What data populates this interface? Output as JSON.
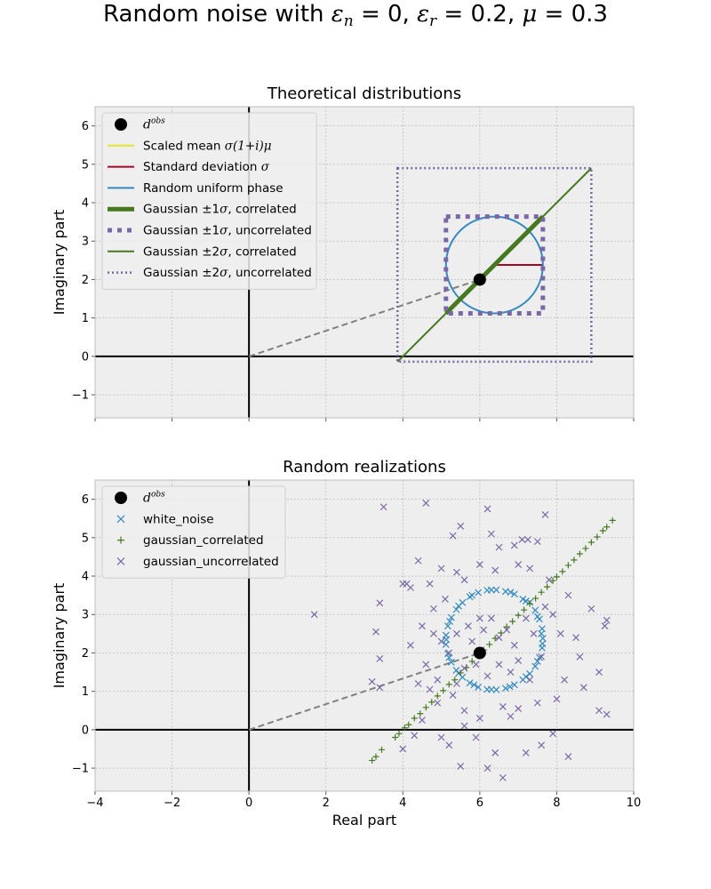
{
  "title": "Random noise with ε_n = 0, ε_r = 0.2, μ = 0.3",
  "chart_data": [
    {
      "type": "line",
      "title": "Theoretical distributions",
      "xlabel": "",
      "ylabel": "Imaginary part",
      "xlim": [
        -4,
        10
      ],
      "ylim": [
        -1.6,
        6.5
      ],
      "xticks": [
        -4,
        -2,
        0,
        2,
        4,
        6,
        8,
        10
      ],
      "yticks": [
        -1,
        0,
        1,
        2,
        3,
        4,
        5,
        6
      ],
      "grid": true,
      "legend_position": "upper-left",
      "observation": {
        "x": 6,
        "y": 2
      },
      "reference_line": {
        "from": [
          0,
          0
        ],
        "to": [
          6,
          2
        ]
      },
      "series": [
        {
          "name": "d^obs",
          "type": "point",
          "color": "#000000",
          "points": [
            [
              6,
              2
            ]
          ]
        },
        {
          "name": "Scaled mean σ(1+i)μ",
          "type": "line",
          "color": "#e5e52b",
          "points": [
            [
              6,
              2
            ],
            [
              6.38,
              2.38
            ]
          ]
        },
        {
          "name": "Standard deviation σ",
          "type": "line",
          "color": "#a60628",
          "points": [
            [
              6.38,
              2.38
            ],
            [
              7.64,
              2.38
            ]
          ]
        },
        {
          "name": "Random uniform phase",
          "type": "circle",
          "color": "#348abd",
          "center": [
            6.38,
            2.38
          ],
          "radius": 1.26
        },
        {
          "name": "Gaussian ±1σ, correlated",
          "type": "line",
          "color": "#467821",
          "points": [
            [
              5.12,
              1.12
            ],
            [
              7.64,
              3.64
            ]
          ]
        },
        {
          "name": "Gaussian ±1σ, uncorrelated",
          "type": "rectangle",
          "color": "#7a68a6",
          "x": [
            5.12,
            7.64
          ],
          "y": [
            1.12,
            3.64
          ]
        },
        {
          "name": "Gaussian ±2σ, correlated",
          "type": "line",
          "color": "#467821",
          "points": [
            [
              3.86,
              -0.14
            ],
            [
              8.9,
              4.9
            ]
          ]
        },
        {
          "name": "Gaussian ±2σ, uncorrelated",
          "type": "rectangle",
          "color": "#7a68a6",
          "x": [
            3.86,
            8.9
          ],
          "y": [
            -0.14,
            4.9
          ]
        }
      ]
    },
    {
      "type": "scatter",
      "title": "Random realizations",
      "xlabel": "Real part",
      "ylabel": "Imaginary part",
      "xlim": [
        -4,
        10
      ],
      "ylim": [
        -1.6,
        6.5
      ],
      "xticks": [
        -4,
        -2,
        0,
        2,
        4,
        6,
        8,
        10
      ],
      "yticks": [
        -1,
        0,
        1,
        2,
        3,
        4,
        5,
        6
      ],
      "grid": true,
      "legend_position": "upper-left",
      "observation": {
        "x": 6,
        "y": 2
      },
      "reference_line": {
        "from": [
          0,
          0
        ],
        "to": [
          6,
          2
        ]
      },
      "series": [
        {
          "name": "d^obs",
          "marker": "circle",
          "color": "#000000",
          "points": [
            [
              6,
              2
            ]
          ]
        },
        {
          "name": "white_noise",
          "marker": "x",
          "color": "#348abd",
          "points": [
            [
              7.64,
              2.38
            ],
            [
              7.62,
              2.63
            ],
            [
              7.55,
              2.88
            ],
            [
              7.44,
              3.11
            ],
            [
              7.3,
              3.32
            ],
            [
              7.12,
              3.4
            ],
            [
              6.9,
              3.53
            ],
            [
              6.67,
              3.6
            ],
            [
              6.43,
              3.64
            ],
            [
              6.19,
              3.63
            ],
            [
              5.96,
              3.57
            ],
            [
              5.74,
              3.46
            ],
            [
              5.55,
              3.31
            ],
            [
              5.39,
              3.13
            ],
            [
              5.26,
              2.92
            ],
            [
              5.17,
              2.7
            ],
            [
              5.12,
              2.46
            ],
            [
              5.12,
              2.22
            ],
            [
              5.17,
              1.98
            ],
            [
              5.26,
              1.76
            ],
            [
              5.39,
              1.55
            ],
            [
              5.55,
              1.37
            ],
            [
              5.74,
              1.22
            ],
            [
              5.96,
              1.11
            ],
            [
              6.19,
              1.05
            ],
            [
              6.43,
              1.04
            ],
            [
              6.67,
              1.08
            ],
            [
              6.9,
              1.17
            ],
            [
              7.12,
              1.3
            ],
            [
              7.3,
              1.46
            ],
            [
              7.44,
              1.65
            ],
            [
              7.55,
              1.88
            ],
            [
              7.62,
              2.13
            ],
            [
              7.6,
              2.5
            ],
            [
              7.5,
              2.95
            ],
            [
              7.2,
              3.35
            ],
            [
              6.8,
              3.58
            ],
            [
              6.3,
              3.64
            ],
            [
              5.8,
              3.5
            ],
            [
              5.45,
              3.22
            ],
            [
              5.22,
              2.82
            ],
            [
              5.13,
              2.35
            ],
            [
              5.2,
              1.88
            ],
            [
              5.45,
              1.47
            ],
            [
              5.85,
              1.17
            ],
            [
              6.3,
              1.05
            ],
            [
              6.78,
              1.12
            ],
            [
              7.2,
              1.38
            ],
            [
              7.5,
              1.78
            ],
            [
              7.63,
              2.24
            ]
          ]
        },
        {
          "name": "gaussian_correlated",
          "marker": "plus",
          "color": "#467821",
          "points": [
            [
              3.2,
              -0.8
            ],
            [
              3.3,
              -0.7
            ],
            [
              3.45,
              -0.52
            ],
            [
              3.8,
              -0.2
            ],
            [
              3.9,
              -0.1
            ],
            [
              4.05,
              0.05
            ],
            [
              4.15,
              0.13
            ],
            [
              4.3,
              0.3
            ],
            [
              4.45,
              0.42
            ],
            [
              4.6,
              0.58
            ],
            [
              4.75,
              0.72
            ],
            [
              4.9,
              0.88
            ],
            [
              5.05,
              1.02
            ],
            [
              5.2,
              1.18
            ],
            [
              5.35,
              1.3
            ],
            [
              5.5,
              1.48
            ],
            [
              5.65,
              1.62
            ],
            [
              5.8,
              1.78
            ],
            [
              5.95,
              1.92
            ],
            [
              6.1,
              2.08
            ],
            [
              6.25,
              2.22
            ],
            [
              6.4,
              2.38
            ],
            [
              6.55,
              2.52
            ],
            [
              6.7,
              2.68
            ],
            [
              6.85,
              2.82
            ],
            [
              7.0,
              2.98
            ],
            [
              7.15,
              3.12
            ],
            [
              7.3,
              3.28
            ],
            [
              7.45,
              3.42
            ],
            [
              7.6,
              3.58
            ],
            [
              7.75,
              3.72
            ],
            [
              7.9,
              3.88
            ],
            [
              8.0,
              3.98
            ],
            [
              8.15,
              4.12
            ],
            [
              8.3,
              4.28
            ],
            [
              8.45,
              4.42
            ],
            [
              8.6,
              4.58
            ],
            [
              8.75,
              4.72
            ],
            [
              8.9,
              4.88
            ],
            [
              9.05,
              5.02
            ],
            [
              9.2,
              5.18
            ],
            [
              9.3,
              5.28
            ],
            [
              9.45,
              5.45
            ]
          ]
        },
        {
          "name": "gaussian_uncorrelated",
          "marker": "x",
          "color": "#7a68a6",
          "points": [
            [
              1.7,
              3.0
            ],
            [
              3.5,
              5.8
            ],
            [
              4.6,
              5.9
            ],
            [
              3.4,
              3.3
            ],
            [
              3.3,
              2.55
            ],
            [
              3.4,
              1.85
            ],
            [
              3.2,
              1.25
            ],
            [
              3.4,
              1.1
            ],
            [
              4.0,
              3.8
            ],
            [
              4.2,
              3.7
            ],
            [
              4.4,
              4.4
            ],
            [
              5.3,
              5.05
            ],
            [
              5.5,
              5.3
            ],
            [
              6.2,
              5.75
            ],
            [
              6.3,
              5.1
            ],
            [
              6.5,
              4.75
            ],
            [
              6.9,
              4.8
            ],
            [
              7.1,
              4.95
            ],
            [
              7.25,
              4.95
            ],
            [
              7.5,
              4.9
            ],
            [
              7.7,
              5.6
            ],
            [
              8.9,
              3.15
            ],
            [
              9.3,
              2.85
            ],
            [
              9.25,
              2.7
            ],
            [
              9.1,
              1.5
            ],
            [
              9.1,
              0.5
            ],
            [
              9.3,
              0.4
            ],
            [
              8.6,
              1.9
            ],
            [
              8.7,
              1.1
            ],
            [
              8.3,
              -0.7
            ],
            [
              7.9,
              -0.1
            ],
            [
              7.6,
              -0.4
            ],
            [
              7.2,
              -0.6
            ],
            [
              6.6,
              -1.25
            ],
            [
              6.4,
              -0.6
            ],
            [
              6.2,
              -1.0
            ],
            [
              5.9,
              -0.2
            ],
            [
              5.5,
              -0.95
            ],
            [
              5.2,
              -0.4
            ],
            [
              5.0,
              -0.2
            ],
            [
              4.0,
              -0.5
            ],
            [
              4.3,
              -0.15
            ],
            [
              4.5,
              0.25
            ],
            [
              4.2,
              2.2
            ],
            [
              4.1,
              3.8
            ],
            [
              4.7,
              3.8
            ],
            [
              4.8,
              3.15
            ],
            [
              5.0,
              4.2
            ],
            [
              5.4,
              4.1
            ],
            [
              5.6,
              3.9
            ],
            [
              6.0,
              4.3
            ],
            [
              6.4,
              4.15
            ],
            [
              7.0,
              4.3
            ],
            [
              7.3,
              4.2
            ],
            [
              7.8,
              3.9
            ],
            [
              7.9,
              3.0
            ],
            [
              8.1,
              2.5
            ],
            [
              8.3,
              3.5
            ],
            [
              8.5,
              2.4
            ],
            [
              8.2,
              1.3
            ],
            [
              7.5,
              0.7
            ],
            [
              7.0,
              0.55
            ],
            [
              6.6,
              0.6
            ],
            [
              6.0,
              0.3
            ],
            [
              5.6,
              0.5
            ],
            [
              5.3,
              0.9
            ],
            [
              4.9,
              1.3
            ],
            [
              4.6,
              1.7
            ],
            [
              4.5,
              2.7
            ],
            [
              4.8,
              2.5
            ],
            [
              5.0,
              2.3
            ],
            [
              5.2,
              2.0
            ],
            [
              5.4,
              2.5
            ],
            [
              5.7,
              2.7
            ],
            [
              5.8,
              2.3
            ],
            [
              6.1,
              2.6
            ],
            [
              6.3,
              2.9
            ],
            [
              6.5,
              2.4
            ],
            [
              6.7,
              2.6
            ],
            [
              6.9,
              2.2
            ],
            [
              7.0,
              1.8
            ],
            [
              6.8,
              1.5
            ],
            [
              6.5,
              1.7
            ],
            [
              6.2,
              1.4
            ],
            [
              5.9,
              1.7
            ],
            [
              5.6,
              1.6
            ],
            [
              5.4,
              1.2
            ],
            [
              7.2,
              2.9
            ],
            [
              7.4,
              2.5
            ],
            [
              7.6,
              1.9
            ],
            [
              7.3,
              1.3
            ],
            [
              6.0,
              2.9
            ],
            [
              5.1,
              3.4
            ],
            [
              4.7,
              1.05
            ],
            [
              4.4,
              1.2
            ],
            [
              4.9,
              0.7
            ],
            [
              5.6,
              0.1
            ],
            [
              6.8,
              0.35
            ],
            [
              8.0,
              0.8
            ],
            [
              7.7,
              3.2
            ]
          ]
        }
      ]
    }
  ]
}
